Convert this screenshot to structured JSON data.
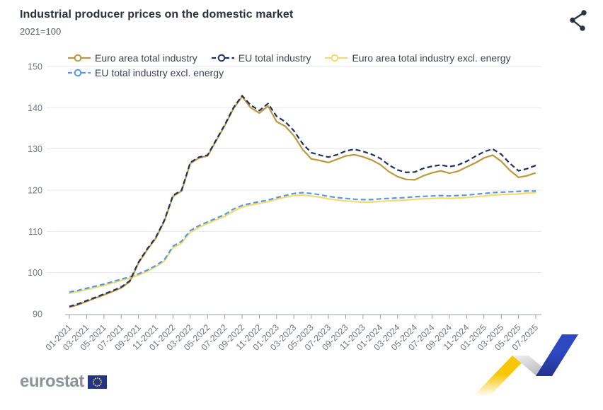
{
  "header": {
    "title": "Industrial producer prices on the domestic market",
    "subtitle": "2021=100"
  },
  "toolbar": {
    "share_icon_name": "share-icon"
  },
  "footer": {
    "logo_text": "eurostat"
  },
  "colors": {
    "euro_area_total": "#BC973D",
    "eu_total": "#1F3160",
    "euro_area_excl_energy": "#F6D971",
    "eu_excl_energy": "#5699E2",
    "gridline": "#E4E8F0",
    "axis_line": "#9AA1AB",
    "tick_label": "#71767F",
    "title_text": "#2c313d",
    "ribbon_yellow": "#F9C606",
    "ribbon_blue": "#2F49C3",
    "eu_flag_blue": "#24338A",
    "eu_flag_star": "#F8D82C"
  },
  "chart_data": {
    "type": "line",
    "title": "Industrial producer prices on the domestic market",
    "index_note": "2021=100",
    "xlabel": "",
    "ylabel": "",
    "ylim": [
      90,
      150
    ],
    "y_ticks": [
      90,
      100,
      110,
      120,
      130,
      140,
      150
    ],
    "grid": true,
    "legend_position": "top",
    "x_tick_label_every": 2,
    "x": [
      "01-2021",
      "02-2021",
      "03-2021",
      "04-2021",
      "05-2021",
      "06-2021",
      "07-2021",
      "08-2021",
      "09-2021",
      "10-2021",
      "11-2021",
      "12-2021",
      "01-2022",
      "02-2022",
      "03-2022",
      "04-2022",
      "05-2022",
      "06-2022",
      "07-2022",
      "08-2022",
      "09-2022",
      "10-2022",
      "11-2022",
      "12-2022",
      "01-2023",
      "02-2023",
      "03-2023",
      "04-2023",
      "05-2023",
      "06-2023",
      "07-2023",
      "08-2023",
      "09-2023",
      "10-2023",
      "11-2023",
      "12-2023",
      "01-2024",
      "02-2024",
      "03-2024",
      "04-2024",
      "05-2024",
      "06-2024",
      "07-2024",
      "08-2024",
      "09-2024",
      "10-2024",
      "11-2024",
      "12-2024",
      "01-2025",
      "02-2025",
      "03-2025",
      "04-2025",
      "05-2025",
      "06-2025",
      "07-2025"
    ],
    "series": [
      {
        "name": "Euro area total industry",
        "id": "euro-area-total-industry",
        "color": "#BC973D",
        "style": "solid",
        "values": [
          91.6,
          92.2,
          93.0,
          93.8,
          94.6,
          95.4,
          96.3,
          97.8,
          102.3,
          105.5,
          108.3,
          112.5,
          118.5,
          119.8,
          126.5,
          127.8,
          128.3,
          132.0,
          135.7,
          139.8,
          142.7,
          140.0,
          138.7,
          140.4,
          136.6,
          135.5,
          133.2,
          129.9,
          127.6,
          127.2,
          126.7,
          127.5,
          128.3,
          128.6,
          128.1,
          127.3,
          126.2,
          124.5,
          123.3,
          122.6,
          122.5,
          123.5,
          124.2,
          124.7,
          124.1,
          124.6,
          125.6,
          126.6,
          127.8,
          128.5,
          127.0,
          124.8,
          123.1,
          123.5,
          124.2
        ]
      },
      {
        "name": "EU total industry",
        "id": "eu-total-industry",
        "color": "#1F3160",
        "style": "dashed",
        "values": [
          91.8,
          92.4,
          93.2,
          94.0,
          94.8,
          95.6,
          96.5,
          98.0,
          102.5,
          105.7,
          108.5,
          112.7,
          118.7,
          120.0,
          126.7,
          128.0,
          128.5,
          132.2,
          135.9,
          140.0,
          142.9,
          140.6,
          139.3,
          141.0,
          137.9,
          136.6,
          134.4,
          131.3,
          129.1,
          128.5,
          128.0,
          128.6,
          129.5,
          129.9,
          129.4,
          128.7,
          127.7,
          126.1,
          124.9,
          124.3,
          124.4,
          125.3,
          125.8,
          126.1,
          125.7,
          126.1,
          127.0,
          128.2,
          129.3,
          130.0,
          128.7,
          126.5,
          124.7,
          125.2,
          126.0
        ]
      },
      {
        "name": "Euro area total industry excl. energy",
        "id": "euro-area-total-industry-excl-energy",
        "color": "#F6D971",
        "style": "solid",
        "values": [
          95.0,
          95.4,
          95.9,
          96.4,
          96.9,
          97.5,
          98.1,
          98.7,
          99.4,
          100.3,
          101.4,
          102.8,
          106.0,
          107.2,
          109.8,
          111.0,
          111.9,
          112.8,
          113.7,
          114.9,
          115.9,
          116.4,
          116.8,
          117.2,
          117.8,
          118.3,
          118.7,
          118.8,
          118.6,
          118.3,
          117.9,
          117.6,
          117.4,
          117.2,
          117.1,
          117.1,
          117.3,
          117.4,
          117.5,
          117.6,
          117.8,
          117.9,
          118.0,
          118.1,
          118.0,
          118.1,
          118.2,
          118.4,
          118.6,
          118.8,
          118.9,
          119.0,
          119.1,
          119.3,
          119.4
        ]
      },
      {
        "name": "EU total industry excl. energy",
        "id": "eu-total-industry-excl-energy",
        "color": "#5699E2",
        "style": "dashed",
        "values": [
          95.3,
          95.7,
          96.2,
          96.7,
          97.2,
          97.8,
          98.4,
          99.0,
          99.7,
          100.6,
          101.7,
          103.1,
          106.4,
          107.6,
          110.2,
          111.4,
          112.3,
          113.2,
          114.1,
          115.4,
          116.3,
          116.8,
          117.2,
          117.6,
          118.2,
          118.7,
          119.2,
          119.4,
          119.2,
          118.9,
          118.5,
          118.2,
          118.0,
          117.8,
          117.7,
          117.7,
          117.9,
          118.0,
          118.1,
          118.2,
          118.4,
          118.5,
          118.6,
          118.7,
          118.6,
          118.7,
          118.8,
          119.0,
          119.2,
          119.4,
          119.5,
          119.6,
          119.7,
          119.8,
          119.8
        ]
      }
    ]
  }
}
